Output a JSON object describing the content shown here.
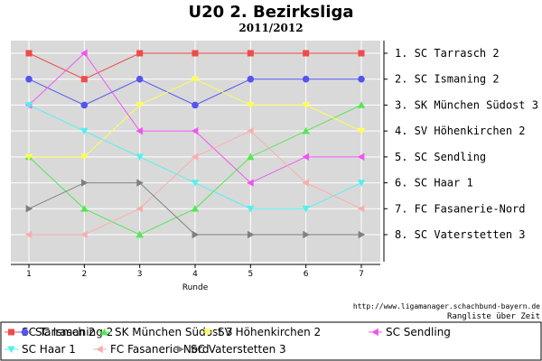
{
  "colors": {
    "plot_bg": "#d9d9d9",
    "grid": "#ffffff",
    "axis": "#000000"
  },
  "chart_data": {
    "type": "line",
    "title": "U20 2. Bezirksliga",
    "subtitle": "2011/2012",
    "xlabel": "Runde",
    "ylabel": "",
    "x": [
      1,
      2,
      3,
      4,
      5,
      6,
      7
    ],
    "ylim": [
      1,
      8
    ],
    "y_inverted": true,
    "grid": true,
    "legend_placement": "bottom",
    "ranking_labels": [
      "1. SC Tarrasch 2",
      "2. SC Ismaning 2",
      "3. SK München Südost 3",
      "4. SV Höhenkirchen 2",
      "5. SC Sendling",
      "6. SC Haar 1",
      "7. FC Fasanerie-Nord",
      "8. SC Vaterstetten 3"
    ],
    "series": [
      {
        "name": "SC Tarrasch 2",
        "color": "#f04a4a",
        "marker": "square",
        "values": [
          1,
          2,
          1,
          1,
          1,
          1,
          1
        ]
      },
      {
        "name": "SC Ismaning 2",
        "color": "#5454f0",
        "marker": "circle",
        "values": [
          2,
          3,
          2,
          3,
          2,
          2,
          2
        ]
      },
      {
        "name": "SK München Südost 3",
        "color": "#55e855",
        "marker": "triangle-up",
        "values": [
          5,
          7,
          8,
          7,
          5,
          4,
          3
        ]
      },
      {
        "name": "SV Höhenkirchen 2",
        "color": "#ffff55",
        "marker": "triangle-down",
        "values": [
          5,
          5,
          3,
          2,
          3,
          3,
          4
        ]
      },
      {
        "name": "SC Sendling",
        "color": "#f055f0",
        "marker": "triangle-left",
        "values": [
          3,
          1,
          4,
          4,
          6,
          5,
          5
        ]
      },
      {
        "name": "SC Haar 1",
        "color": "#55f0f0",
        "marker": "triangle-down",
        "values": [
          3,
          4,
          5,
          6,
          7,
          7,
          6
        ]
      },
      {
        "name": "FC Fasanerie-Nord",
        "color": "#f7b0b0",
        "marker": "triangle-left",
        "values": [
          8,
          8,
          7,
          5,
          4,
          6,
          7
        ]
      },
      {
        "name": "SC Vaterstetten 3",
        "color": "#808080",
        "marker": "triangle-right",
        "values": [
          7,
          6,
          6,
          8,
          8,
          8,
          8
        ]
      }
    ]
  },
  "footer": {
    "url": "http://www.ligamanager.schachbund-bayern.de",
    "caption": "Rangliste über Zeit"
  }
}
